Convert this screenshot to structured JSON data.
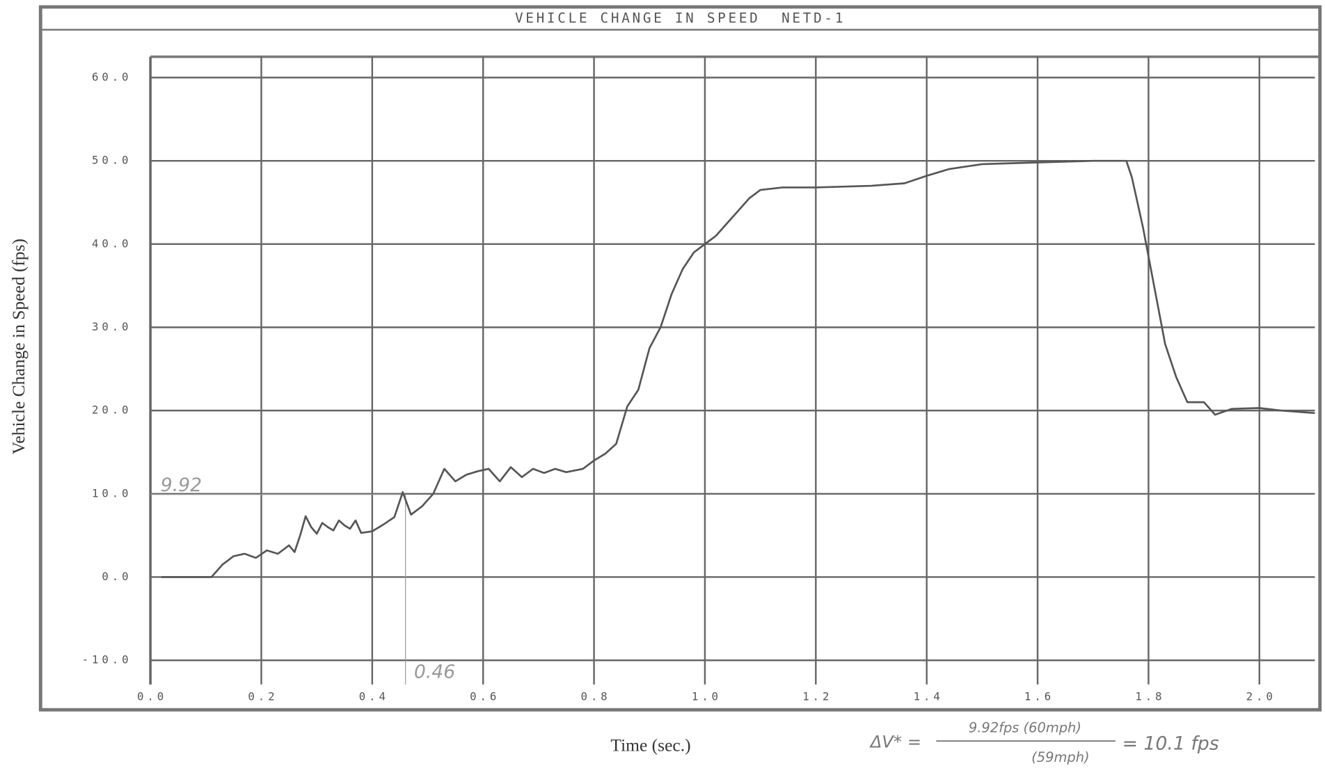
{
  "chart_data": {
    "type": "line",
    "title": "VEHICLE CHANGE IN SPEED  NETD-1",
    "x_label": "Time (sec.)",
    "y_label": "Vehicle Change in Speed (fps)",
    "xlim": [
      0,
      2.1
    ],
    "ylim": [
      -12.9,
      62.5
    ],
    "xticks": [
      {
        "value": 0,
        "label": "0.0"
      },
      0.2,
      0.4,
      0.6,
      0.8,
      {
        "value": 1,
        "label": "1.0"
      },
      1.2,
      1.4,
      1.6,
      1.8,
      {
        "value": 2,
        "label": "2.0"
      }
    ],
    "yticks": [
      {
        "value": -10,
        "label": "-10.0"
      },
      {
        "value": 0,
        "label": "0.0"
      },
      {
        "value": 10,
        "label": "10.0"
      },
      {
        "value": 20,
        "label": "20.0"
      },
      {
        "value": 30,
        "label": "30.0"
      },
      {
        "value": 40,
        "label": "40.0"
      },
      {
        "value": 50,
        "label": "50.0"
      },
      {
        "value": 60,
        "label": "60.0"
      }
    ],
    "grid": true,
    "series": [
      {
        "color": "#555555",
        "x": [
          0.02,
          0.11,
          0.13,
          0.15,
          0.17,
          0.19,
          0.21,
          0.23,
          0.25,
          0.26,
          0.27,
          0.28,
          0.29,
          0.3,
          0.31,
          0.32,
          0.33,
          0.34,
          0.35,
          0.36,
          0.37,
          0.38,
          0.4,
          0.42,
          0.44,
          0.455,
          0.47,
          0.49,
          0.51,
          0.53,
          0.55,
          0.57,
          0.59,
          0.61,
          0.63,
          0.65,
          0.67,
          0.69,
          0.71,
          0.73,
          0.75,
          0.78,
          0.8,
          0.82,
          0.84,
          0.86,
          0.88,
          0.9,
          0.92,
          0.94,
          0.96,
          0.98,
          1.0,
          1.02,
          1.04,
          1.06,
          1.08,
          1.1,
          1.14,
          1.2,
          1.3,
          1.36,
          1.4,
          1.44,
          1.5,
          1.6,
          1.7,
          1.76,
          1.77,
          1.79,
          1.81,
          1.83,
          1.85,
          1.87,
          1.9,
          1.92,
          1.95,
          2.0,
          2.04,
          2.1
        ],
        "values": [
          0,
          0,
          1.5,
          2.5,
          2.8,
          2.3,
          3.2,
          2.8,
          3.8,
          3,
          5,
          7.3,
          6,
          5.2,
          6.5,
          6,
          5.6,
          6.8,
          6.2,
          5.8,
          6.8,
          5.3,
          5.5,
          6.3,
          7.2,
          10.2,
          7.5,
          8.5,
          10,
          13,
          11.5,
          12.3,
          12.7,
          13,
          11.5,
          13.2,
          12,
          13,
          12.5,
          13,
          12.6,
          13,
          14,
          14.8,
          16,
          20.5,
          22.5,
          27.5,
          30,
          34,
          37,
          39,
          40,
          41,
          42.5,
          44,
          45.5,
          46.5,
          46.8,
          46.8,
          47,
          47.3,
          48.2,
          49,
          49.6,
          49.8,
          50,
          50,
          48,
          42,
          35,
          28,
          24,
          21,
          21,
          19.5,
          20.2,
          20.3,
          20,
          19.7
        ]
      }
    ],
    "reference_point": {
      "x": 0.46,
      "y": 9.92
    },
    "formula": {
      "lhs": "ΔV* =",
      "numerator": "9.92fps (60mph)",
      "denominator": "(59mph)",
      "result": "= 10.1 fps"
    }
  }
}
